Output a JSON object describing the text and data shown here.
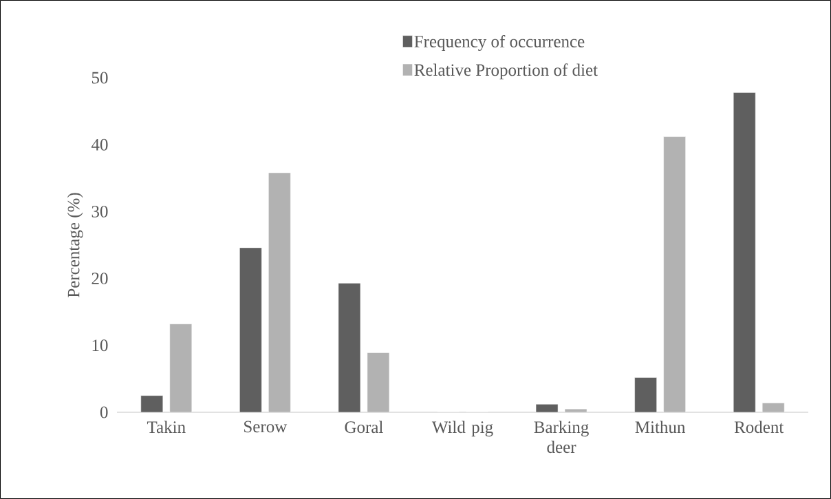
{
  "chart_data": {
    "type": "bar",
    "ylabel": "Percentage (%)",
    "categories": [
      "Takin",
      "Serow",
      "Goral",
      "Wild pig",
      "Barking deer",
      "Mithun",
      "Rodent"
    ],
    "series": [
      {
        "name": "Frequency of occurrence",
        "color": "#5f5f5f",
        "values": [
          2.5,
          24.6,
          19.3,
          0,
          1.2,
          5.2,
          47.8
        ]
      },
      {
        "name": "Relative Proportion of diet",
        "color": "#b2b2b2",
        "values": [
          13.2,
          35.8,
          8.9,
          0,
          0.5,
          41.2,
          1.4
        ]
      }
    ],
    "ylim": [
      0,
      50
    ],
    "yticks": [
      0,
      10,
      20,
      30,
      40,
      50
    ],
    "legend": "top"
  }
}
